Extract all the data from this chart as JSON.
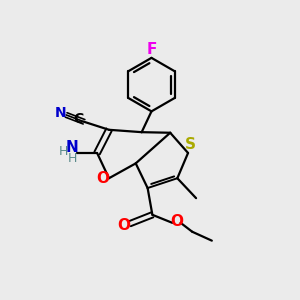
{
  "bg_color": "#ebebeb",
  "atom_colors": {
    "C": "#000000",
    "N": "#0000cc",
    "O": "#ff0000",
    "S": "#aaaa00",
    "F": "#ee00ee",
    "H": "#5a8a8a"
  },
  "figsize": [
    3.0,
    3.0
  ],
  "dpi": 100
}
